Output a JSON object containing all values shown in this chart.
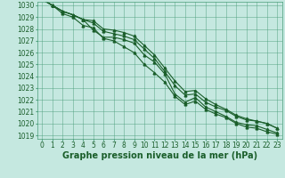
{
  "title": "Graphe pression niveau de la mer (hPa)",
  "background_color": "#c5e8e0",
  "grid_color": "#4a9e7a",
  "line_color": "#1a5e2a",
  "x_ticks": [
    0,
    1,
    2,
    3,
    4,
    5,
    6,
    7,
    8,
    9,
    10,
    11,
    12,
    13,
    14,
    15,
    16,
    17,
    18,
    19,
    20,
    21,
    22,
    23
  ],
  "y_min": 1019,
  "y_max": 1030,
  "y_ticks": [
    1019,
    1020,
    1021,
    1022,
    1023,
    1024,
    1025,
    1026,
    1027,
    1028,
    1029,
    1030
  ],
  "lines": [
    [
      1030.5,
      1030.0,
      1029.5,
      1029.2,
      1028.8,
      1027.9,
      1027.3,
      1027.3,
      1027.1,
      1026.8,
      1025.8,
      1025.2,
      1024.2,
      1022.5,
      1021.8,
      1022.2,
      1021.4,
      1021.0,
      1020.6,
      1020.1,
      1019.9,
      1019.8,
      1019.5,
      1019.2
    ],
    [
      1030.5,
      1030.0,
      1029.5,
      1029.2,
      1028.8,
      1028.5,
      1027.8,
      1027.6,
      1027.4,
      1027.1,
      1026.3,
      1025.5,
      1024.4,
      1023.2,
      1022.4,
      1022.5,
      1021.8,
      1021.4,
      1021.1,
      1020.6,
      1020.3,
      1020.2,
      1020.0,
      1019.6
    ],
    [
      1030.5,
      1030.0,
      1029.3,
      1029.0,
      1028.3,
      1028.1,
      1027.2,
      1027.0,
      1026.5,
      1026.0,
      1025.0,
      1024.3,
      1023.5,
      1022.3,
      1021.6,
      1021.9,
      1021.2,
      1020.8,
      1020.5,
      1020.0,
      1019.7,
      1019.6,
      1019.3,
      1019.1
    ],
    [
      1030.5,
      1030.0,
      1029.5,
      1029.2,
      1028.8,
      1028.7,
      1028.0,
      1027.9,
      1027.7,
      1027.4,
      1026.6,
      1025.8,
      1024.7,
      1023.6,
      1022.7,
      1022.8,
      1022.1,
      1021.6,
      1021.2,
      1020.7,
      1020.4,
      1020.2,
      1020.0,
      1019.6
    ]
  ],
  "marker": "^",
  "marker_size": 2,
  "line_width": 0.8,
  "title_fontsize": 7,
  "tick_fontsize": 5.5
}
